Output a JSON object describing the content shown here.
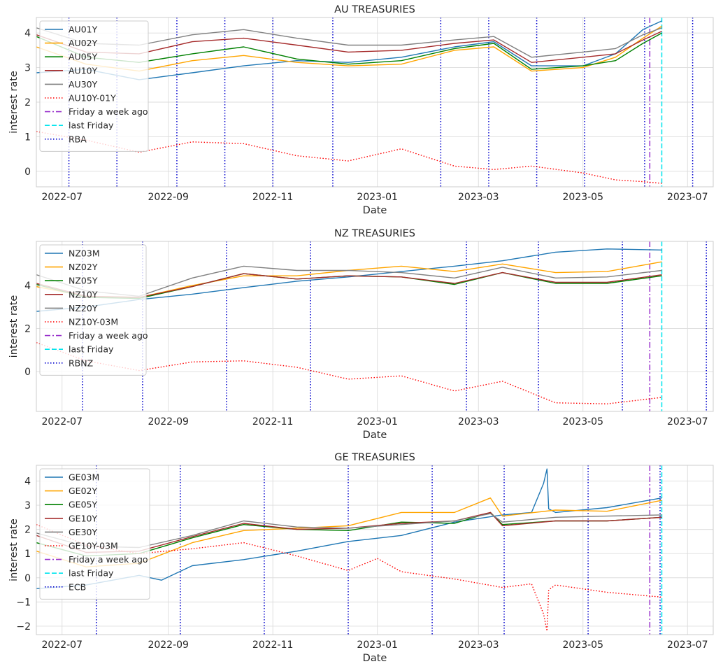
{
  "chart_data": [
    {
      "type": "line",
      "title": "AU TREASURIES",
      "xlabel": "Date",
      "ylabel": "interest rate",
      "ylim": [
        -0.45,
        4.45
      ],
      "xlim": [
        "2022-06-16",
        "2023-07-16"
      ],
      "grid": true,
      "legend_position": "upper-left",
      "yticks": [
        0,
        1,
        2,
        3,
        4
      ],
      "xticks": [
        "2022-07-01",
        "2022-09-01",
        "2022-11-01",
        "2023-01-01",
        "2023-03-01",
        "2023-05-01",
        "2023-07-01"
      ],
      "xtick_labels": [
        "2022-07",
        "2022-09",
        "2022-11",
        "2023-01",
        "2023-03",
        "2023-05",
        "2023-07"
      ],
      "series": [
        {
          "name": "AU01Y",
          "color": "#1f77b4",
          "style": "solid",
          "x": [
            "2022-06-16",
            "2022-07-15",
            "2022-08-15",
            "2022-09-15",
            "2022-10-15",
            "2022-11-15",
            "2022-12-15",
            "2023-01-15",
            "2023-02-15",
            "2023-03-10",
            "2023-04-01",
            "2023-05-01",
            "2023-05-20",
            "2023-06-05",
            "2023-06-16"
          ],
          "y": [
            2.85,
            2.95,
            2.65,
            2.85,
            3.05,
            3.2,
            3.15,
            3.3,
            3.6,
            3.75,
            3.05,
            3.05,
            3.4,
            4.1,
            4.35
          ]
        },
        {
          "name": "AU02Y",
          "color": "#ffa500",
          "style": "solid",
          "x": [
            "2022-06-16",
            "2022-07-15",
            "2022-08-15",
            "2022-09-15",
            "2022-10-15",
            "2022-11-15",
            "2022-12-15",
            "2023-01-15",
            "2023-02-15",
            "2023-03-10",
            "2023-04-01",
            "2023-05-01",
            "2023-05-20",
            "2023-06-05",
            "2023-06-16"
          ],
          "y": [
            3.6,
            3.1,
            2.9,
            3.2,
            3.35,
            3.15,
            3.05,
            3.1,
            3.5,
            3.6,
            2.9,
            3.0,
            3.3,
            3.85,
            4.2
          ]
        },
        {
          "name": "AU05Y",
          "color": "#008000",
          "style": "solid",
          "x": [
            "2022-06-16",
            "2022-07-15",
            "2022-08-15",
            "2022-09-15",
            "2022-10-15",
            "2022-11-15",
            "2022-12-15",
            "2023-01-15",
            "2023-02-15",
            "2023-03-10",
            "2023-04-01",
            "2023-05-01",
            "2023-05-20",
            "2023-06-05",
            "2023-06-16"
          ],
          "y": [
            3.9,
            3.3,
            3.15,
            3.4,
            3.6,
            3.25,
            3.1,
            3.2,
            3.55,
            3.7,
            2.95,
            3.05,
            3.2,
            3.7,
            4.0
          ]
        },
        {
          "name": "AU10Y",
          "color": "#a52a2a",
          "style": "solid",
          "x": [
            "2022-06-16",
            "2022-07-15",
            "2022-08-15",
            "2022-09-15",
            "2022-10-15",
            "2022-11-15",
            "2022-12-15",
            "2023-01-15",
            "2023-02-15",
            "2023-03-10",
            "2023-04-01",
            "2023-05-01",
            "2023-05-20",
            "2023-06-05",
            "2023-06-16"
          ],
          "y": [
            3.95,
            3.45,
            3.4,
            3.75,
            3.85,
            3.65,
            3.45,
            3.5,
            3.7,
            3.8,
            3.15,
            3.3,
            3.4,
            3.8,
            4.05
          ]
        },
        {
          "name": "AU30Y",
          "color": "#808080",
          "style": "solid",
          "x": [
            "2022-06-16",
            "2022-07-15",
            "2022-08-15",
            "2022-09-15",
            "2022-10-15",
            "2022-11-15",
            "2022-12-15",
            "2023-01-15",
            "2023-02-15",
            "2023-03-10",
            "2023-04-01",
            "2023-05-01",
            "2023-05-20",
            "2023-06-05",
            "2023-06-16"
          ],
          "y": [
            4.15,
            3.7,
            3.65,
            3.95,
            4.1,
            3.85,
            3.65,
            3.65,
            3.8,
            3.9,
            3.3,
            3.45,
            3.55,
            3.95,
            4.15
          ]
        },
        {
          "name": "AU10Y-01Y",
          "color": "#ff0000",
          "style": "dotted",
          "x": [
            "2022-06-16",
            "2022-07-15",
            "2022-08-15",
            "2022-09-15",
            "2022-10-15",
            "2022-11-15",
            "2022-12-15",
            "2023-01-15",
            "2023-02-15",
            "2023-03-10",
            "2023-04-01",
            "2023-05-01",
            "2023-05-20",
            "2023-06-05",
            "2023-06-16"
          ],
          "y": [
            1.15,
            0.9,
            0.55,
            0.85,
            0.8,
            0.45,
            0.3,
            0.65,
            0.15,
            0.05,
            0.15,
            -0.05,
            -0.25,
            -0.3,
            -0.35
          ]
        }
      ],
      "markers": [
        {
          "name": "Friday a week ago",
          "color": "#9932cc",
          "style": "dashdot",
          "x": "2023-06-09"
        },
        {
          "name": "last Friday",
          "color": "#00e5ee",
          "style": "dashed",
          "x": "2023-06-16"
        },
        {
          "name": "RBA",
          "color": "#0000cd",
          "style": "dotted",
          "x": [
            "2022-07-05",
            "2022-08-02",
            "2022-09-06",
            "2022-10-04",
            "2022-11-01",
            "2022-12-06",
            "2023-02-07",
            "2023-03-07",
            "2023-04-04",
            "2023-05-02",
            "2023-06-06",
            "2023-07-04"
          ]
        }
      ]
    },
    {
      "type": "line",
      "title": "NZ TREASURIES",
      "xlabel": "Date",
      "ylabel": "interest rate",
      "ylim": [
        -1.85,
        6.05
      ],
      "xlim": [
        "2022-06-16",
        "2023-07-16"
      ],
      "grid": true,
      "legend_position": "upper-left",
      "yticks": [
        0,
        2,
        4
      ],
      "xticks": [
        "2022-07-01",
        "2022-09-01",
        "2022-11-01",
        "2023-01-01",
        "2023-03-01",
        "2023-05-01",
        "2023-07-01"
      ],
      "xtick_labels": [
        "2022-07",
        "2022-09",
        "2022-11",
        "2023-01",
        "2023-03",
        "2023-05",
        "2023-07"
      ],
      "series": [
        {
          "name": "NZ03M",
          "color": "#1f77b4",
          "style": "solid",
          "x": [
            "2022-06-16",
            "2022-07-15",
            "2022-08-15",
            "2022-09-15",
            "2022-10-15",
            "2022-11-15",
            "2022-12-15",
            "2023-01-15",
            "2023-02-15",
            "2023-03-15",
            "2023-04-15",
            "2023-05-15",
            "2023-06-16"
          ],
          "y": [
            2.8,
            3.0,
            3.35,
            3.6,
            3.9,
            4.2,
            4.4,
            4.65,
            4.9,
            5.15,
            5.55,
            5.7,
            5.65
          ]
        },
        {
          "name": "NZ02Y",
          "color": "#ffa500",
          "style": "solid",
          "x": [
            "2022-06-16",
            "2022-07-15",
            "2022-08-15",
            "2022-09-15",
            "2022-10-15",
            "2022-11-15",
            "2022-12-15",
            "2023-01-15",
            "2023-02-15",
            "2023-03-15",
            "2023-04-15",
            "2023-05-15",
            "2023-06-16"
          ],
          "y": [
            3.95,
            3.5,
            3.45,
            4.0,
            4.45,
            4.45,
            4.7,
            4.9,
            4.65,
            5.0,
            4.6,
            4.65,
            5.1
          ]
        },
        {
          "name": "NZ05Y",
          "color": "#008000",
          "style": "solid",
          "x": [
            "2022-06-16",
            "2022-07-15",
            "2022-08-15",
            "2022-09-15",
            "2022-10-15",
            "2022-11-15",
            "2022-12-15",
            "2023-01-15",
            "2023-02-15",
            "2023-03-15",
            "2023-04-15",
            "2023-05-15",
            "2023-06-16"
          ],
          "y": [
            4.05,
            3.45,
            3.4,
            3.95,
            4.55,
            4.3,
            4.45,
            4.4,
            4.05,
            4.6,
            4.1,
            4.1,
            4.45
          ]
        },
        {
          "name": "NZ10Y",
          "color": "#a52a2a",
          "style": "solid",
          "x": [
            "2022-06-16",
            "2022-07-15",
            "2022-08-15",
            "2022-09-15",
            "2022-10-15",
            "2022-11-15",
            "2022-12-15",
            "2023-01-15",
            "2023-02-15",
            "2023-03-15",
            "2023-04-15",
            "2023-05-15",
            "2023-06-16"
          ],
          "y": [
            4.1,
            3.5,
            3.45,
            3.95,
            4.55,
            4.3,
            4.45,
            4.4,
            4.1,
            4.6,
            4.15,
            4.15,
            4.5
          ]
        },
        {
          "name": "NZ20Y",
          "color": "#808080",
          "style": "solid",
          "x": [
            "2022-06-16",
            "2022-07-15",
            "2022-08-15",
            "2022-09-15",
            "2022-10-15",
            "2022-11-15",
            "2022-12-15",
            "2023-01-15",
            "2023-02-15",
            "2023-03-15",
            "2023-04-15",
            "2023-05-15",
            "2023-06-16"
          ],
          "y": [
            4.5,
            3.75,
            3.5,
            4.35,
            4.9,
            4.7,
            4.7,
            4.6,
            4.35,
            4.85,
            4.35,
            4.4,
            4.7
          ]
        },
        {
          "name": "NZ10Y-03M",
          "color": "#ff0000",
          "style": "dotted",
          "x": [
            "2022-06-16",
            "2022-07-15",
            "2022-08-15",
            "2022-09-15",
            "2022-10-15",
            "2022-11-15",
            "2022-12-15",
            "2023-01-15",
            "2023-02-15",
            "2023-03-15",
            "2023-04-15",
            "2023-05-15",
            "2023-06-16"
          ],
          "y": [
            1.35,
            0.5,
            0.05,
            0.45,
            0.5,
            0.2,
            -0.35,
            -0.2,
            -0.9,
            -0.45,
            -1.45,
            -1.5,
            -1.2
          ]
        }
      ],
      "markers": [
        {
          "name": "Friday a week ago",
          "color": "#9932cc",
          "style": "dashdot",
          "x": "2023-06-09"
        },
        {
          "name": "last Friday",
          "color": "#00e5ee",
          "style": "dashed",
          "x": "2023-06-16"
        },
        {
          "name": "RBNZ",
          "color": "#0000cd",
          "style": "dotted",
          "x": [
            "2022-07-13",
            "2022-08-17",
            "2022-10-05",
            "2022-11-23",
            "2023-02-22",
            "2023-04-05",
            "2023-05-24",
            "2023-07-12"
          ]
        }
      ]
    },
    {
      "type": "line",
      "title": "GE TREASURIES",
      "xlabel": "Date",
      "ylabel": "interest rate",
      "ylim": [
        -2.35,
        4.65
      ],
      "xlim": [
        "2022-06-16",
        "2023-07-16"
      ],
      "grid": true,
      "legend_position": "upper-left",
      "yticks": [
        -2,
        -1,
        0,
        1,
        2,
        3,
        4
      ],
      "xticks": [
        "2022-07-01",
        "2022-09-01",
        "2022-11-01",
        "2023-01-01",
        "2023-03-01",
        "2023-05-01",
        "2023-07-01"
      ],
      "xtick_labels": [
        "2022-07",
        "2022-09",
        "2022-11",
        "2023-01",
        "2023-03",
        "2023-05",
        "2023-07"
      ],
      "series": [
        {
          "name": "GE03M",
          "color": "#1f77b4",
          "style": "solid",
          "x": [
            "2022-06-16",
            "2022-07-15",
            "2022-08-15",
            "2022-08-28",
            "2022-09-15",
            "2022-10-15",
            "2022-11-15",
            "2022-12-15",
            "2023-01-15",
            "2023-02-15",
            "2023-03-15",
            "2023-04-01",
            "2023-04-08",
            "2023-04-10",
            "2023-04-11",
            "2023-04-15",
            "2023-05-15",
            "2023-06-16"
          ],
          "y": [
            -0.45,
            -0.3,
            0.1,
            -0.1,
            0.5,
            0.75,
            1.1,
            1.5,
            1.75,
            2.3,
            2.6,
            2.7,
            3.9,
            4.5,
            2.85,
            2.7,
            2.9,
            3.3
          ]
        },
        {
          "name": "GE02Y",
          "color": "#ffa500",
          "style": "solid",
          "x": [
            "2022-06-16",
            "2022-07-15",
            "2022-08-15",
            "2022-09-15",
            "2022-10-15",
            "2022-11-15",
            "2022-12-15",
            "2023-01-15",
            "2023-02-15",
            "2023-03-08",
            "2023-03-15",
            "2023-04-15",
            "2023-05-15",
            "2023-06-16"
          ],
          "y": [
            1.1,
            0.45,
            0.6,
            1.45,
            1.95,
            2.05,
            2.15,
            2.7,
            2.7,
            3.3,
            2.55,
            2.8,
            2.75,
            3.2
          ]
        },
        {
          "name": "GE05Y",
          "color": "#008000",
          "style": "solid",
          "x": [
            "2022-06-16",
            "2022-07-15",
            "2022-08-15",
            "2022-09-15",
            "2022-10-15",
            "2022-11-15",
            "2022-12-15",
            "2023-01-15",
            "2023-02-15",
            "2023-03-08",
            "2023-03-15",
            "2023-04-15",
            "2023-05-15",
            "2023-06-16"
          ],
          "y": [
            1.45,
            0.9,
            1.0,
            1.65,
            2.2,
            2.0,
            1.95,
            2.3,
            2.25,
            2.7,
            2.2,
            2.35,
            2.35,
            2.5
          ]
        },
        {
          "name": "GE10Y",
          "color": "#a52a2a",
          "style": "solid",
          "x": [
            "2022-06-16",
            "2022-07-15",
            "2022-08-15",
            "2022-09-15",
            "2022-10-15",
            "2022-11-15",
            "2022-12-15",
            "2023-01-15",
            "2023-02-15",
            "2023-03-08",
            "2023-03-15",
            "2023-04-15",
            "2023-05-15",
            "2023-06-16"
          ],
          "y": [
            1.75,
            1.05,
            1.1,
            1.7,
            2.25,
            2.0,
            2.05,
            2.25,
            2.35,
            2.7,
            2.15,
            2.35,
            2.35,
            2.5
          ]
        },
        {
          "name": "GE30Y",
          "color": "#808080",
          "style": "solid",
          "x": [
            "2022-06-16",
            "2022-07-15",
            "2022-08-15",
            "2022-09-15",
            "2022-10-15",
            "2022-11-15",
            "2022-12-15",
            "2023-01-15",
            "2023-02-15",
            "2023-03-08",
            "2023-03-15",
            "2023-04-15",
            "2023-05-15",
            "2023-06-16"
          ],
          "y": [
            1.85,
            1.3,
            1.25,
            1.75,
            2.35,
            2.1,
            2.05,
            2.2,
            2.35,
            2.65,
            2.3,
            2.5,
            2.55,
            2.6
          ]
        },
        {
          "name": "GE10Y-03M",
          "color": "#ff0000",
          "style": "dotted",
          "x": [
            "2022-06-16",
            "2022-07-15",
            "2022-08-15",
            "2022-09-15",
            "2022-10-15",
            "2022-11-15",
            "2022-12-15",
            "2023-01-01",
            "2023-01-15",
            "2023-02-15",
            "2023-03-15",
            "2023-04-01",
            "2023-04-08",
            "2023-04-10",
            "2023-04-11",
            "2023-04-15",
            "2023-05-15",
            "2023-06-16"
          ],
          "y": [
            2.2,
            1.35,
            1.0,
            1.2,
            1.45,
            0.9,
            0.3,
            0.8,
            0.25,
            -0.05,
            -0.4,
            -0.25,
            -1.5,
            -2.2,
            -0.5,
            -0.3,
            -0.6,
            -0.8
          ]
        }
      ],
      "markers": [
        {
          "name": "Friday a week ago",
          "color": "#9932cc",
          "style": "dashdot",
          "x": "2023-06-09"
        },
        {
          "name": "last Friday",
          "color": "#00e5ee",
          "style": "dashed",
          "x": "2023-06-16"
        },
        {
          "name": "ECB",
          "color": "#0000cd",
          "style": "dotted",
          "x": [
            "2022-07-21",
            "2022-09-08",
            "2022-10-27",
            "2022-12-15",
            "2023-02-02",
            "2023-03-16",
            "2023-05-04",
            "2023-06-15"
          ]
        }
      ]
    }
  ]
}
